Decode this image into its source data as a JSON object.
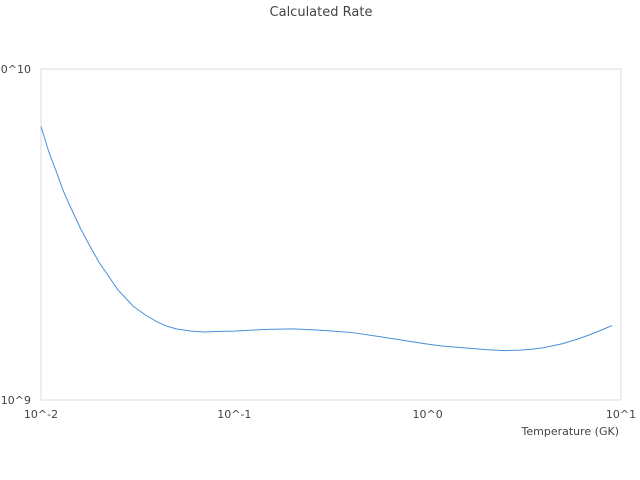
{
  "chart_data": {
    "type": "line",
    "title": "Calculated Rate",
    "xlabel": "Temperature (GK)",
    "ylabel": "",
    "x_scale": "log",
    "y_scale": "log",
    "xlim": [
      0.01,
      10
    ],
    "ylim": [
      1000000000,
      10000000000
    ],
    "x_tick_labels": [
      "10^-2",
      "10^-1",
      "10^0",
      "10^1"
    ],
    "y_tick_labels": [
      "10^9",
      "0^10"
    ],
    "grid": false,
    "line_color": "#4a90d9",
    "series": [
      {
        "x": [
          0.01,
          0.011,
          0.012,
          0.013,
          0.014,
          0.016,
          0.018,
          0.02,
          0.022,
          0.025,
          0.03,
          0.035,
          0.04,
          0.045,
          0.05,
          0.06,
          0.07,
          0.08,
          0.1,
          0.12,
          0.15,
          0.2,
          0.25,
          0.3,
          0.4,
          0.5,
          0.6,
          0.7,
          0.8,
          1.0,
          1.2,
          1.5,
          2.0,
          2.5,
          3.0,
          3.5,
          4.0,
          5.0,
          6.0,
          7.0,
          8.0,
          9.0
        ],
        "y": [
          6700000000,
          5600000000,
          4900000000,
          4300000000,
          3900000000,
          3300000000,
          2900000000,
          2600000000,
          2400000000,
          2150000000,
          1920000000,
          1800000000,
          1720000000,
          1670000000,
          1640000000,
          1615000000,
          1605000000,
          1610000000,
          1615000000,
          1625000000,
          1635000000,
          1640000000,
          1630000000,
          1620000000,
          1600000000,
          1570000000,
          1545000000,
          1525000000,
          1505000000,
          1475000000,
          1455000000,
          1440000000,
          1420000000,
          1410000000,
          1415000000,
          1425000000,
          1440000000,
          1480000000,
          1530000000,
          1580000000,
          1630000000,
          1680000000
        ]
      }
    ]
  }
}
